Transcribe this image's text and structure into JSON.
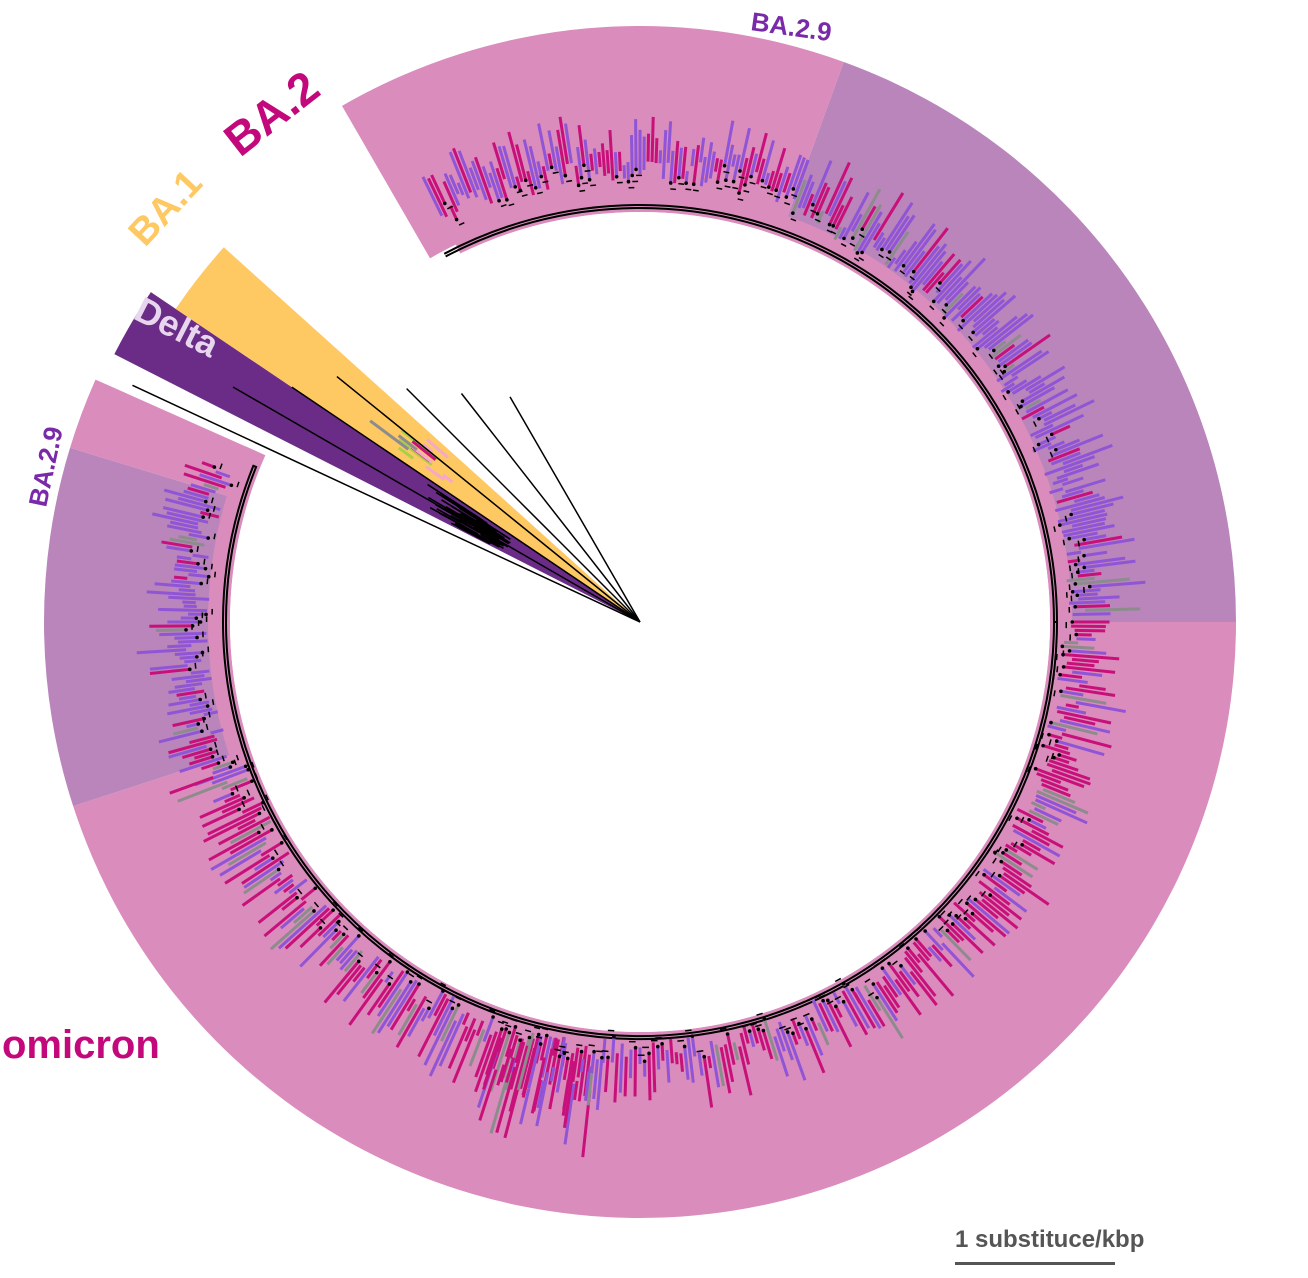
{
  "colors": {
    "omicron_band": "#da8cbc",
    "ba29_band": "#b985bb",
    "ba2_text": "#c2087a",
    "ba1_band": "#fec862",
    "delta_band": "#6a2c86",
    "ba29_text": "#7a2aa8",
    "tip_magenta": "#c8107a",
    "tip_violet": "#8f55d6",
    "tip_gray": "#8c8c8c",
    "branch": "#000000",
    "scale": "#555555"
  },
  "labels": {
    "omicron": "omicron",
    "ba2": "BA.2",
    "ba1": "BA.1",
    "delta": "Delta",
    "ba29_top": "BA.2.9",
    "ba29_left": "BA.2.9"
  },
  "scale": {
    "label": "1 substituce/kbp"
  }
}
